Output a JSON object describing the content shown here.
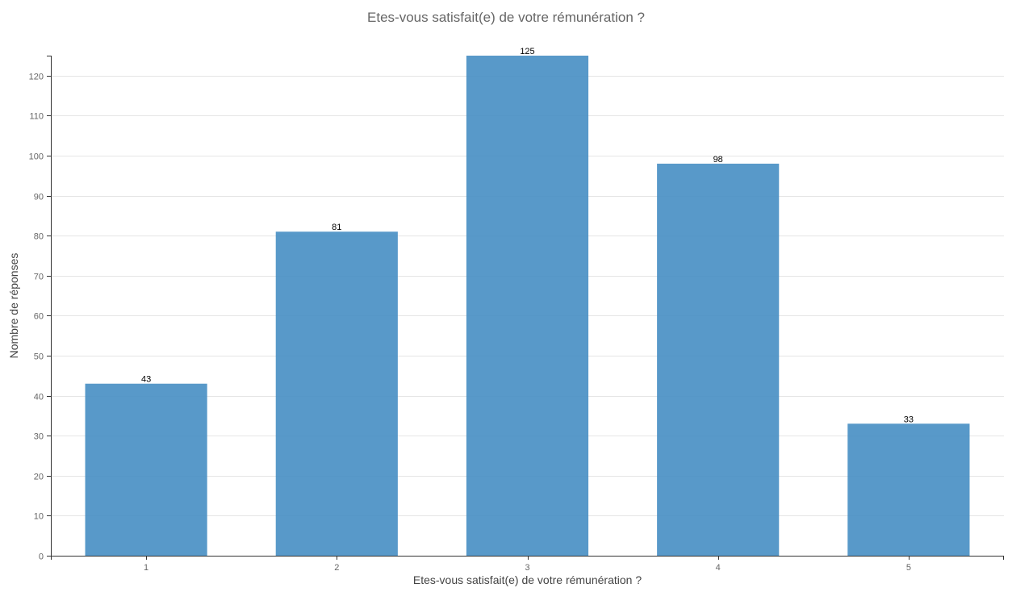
{
  "chart_data": {
    "type": "bar",
    "title": "Etes-vous satisfait(e) de votre rémunération ?",
    "xlabel": "Etes-vous satisfait(e) de votre rémunération ?",
    "ylabel": "Nombre de réponses",
    "categories": [
      "1",
      "2",
      "3",
      "4",
      "5"
    ],
    "values": [
      43,
      81,
      125,
      98,
      33
    ],
    "ylim": [
      0,
      125
    ],
    "yticks": [
      0,
      10,
      20,
      30,
      40,
      50,
      60,
      70,
      80,
      90,
      100,
      110,
      120
    ],
    "grid": true,
    "legend": "none",
    "bar_color": "#4a90c4",
    "grid_color": "#e5e5e5",
    "axis_color": "#333333"
  }
}
